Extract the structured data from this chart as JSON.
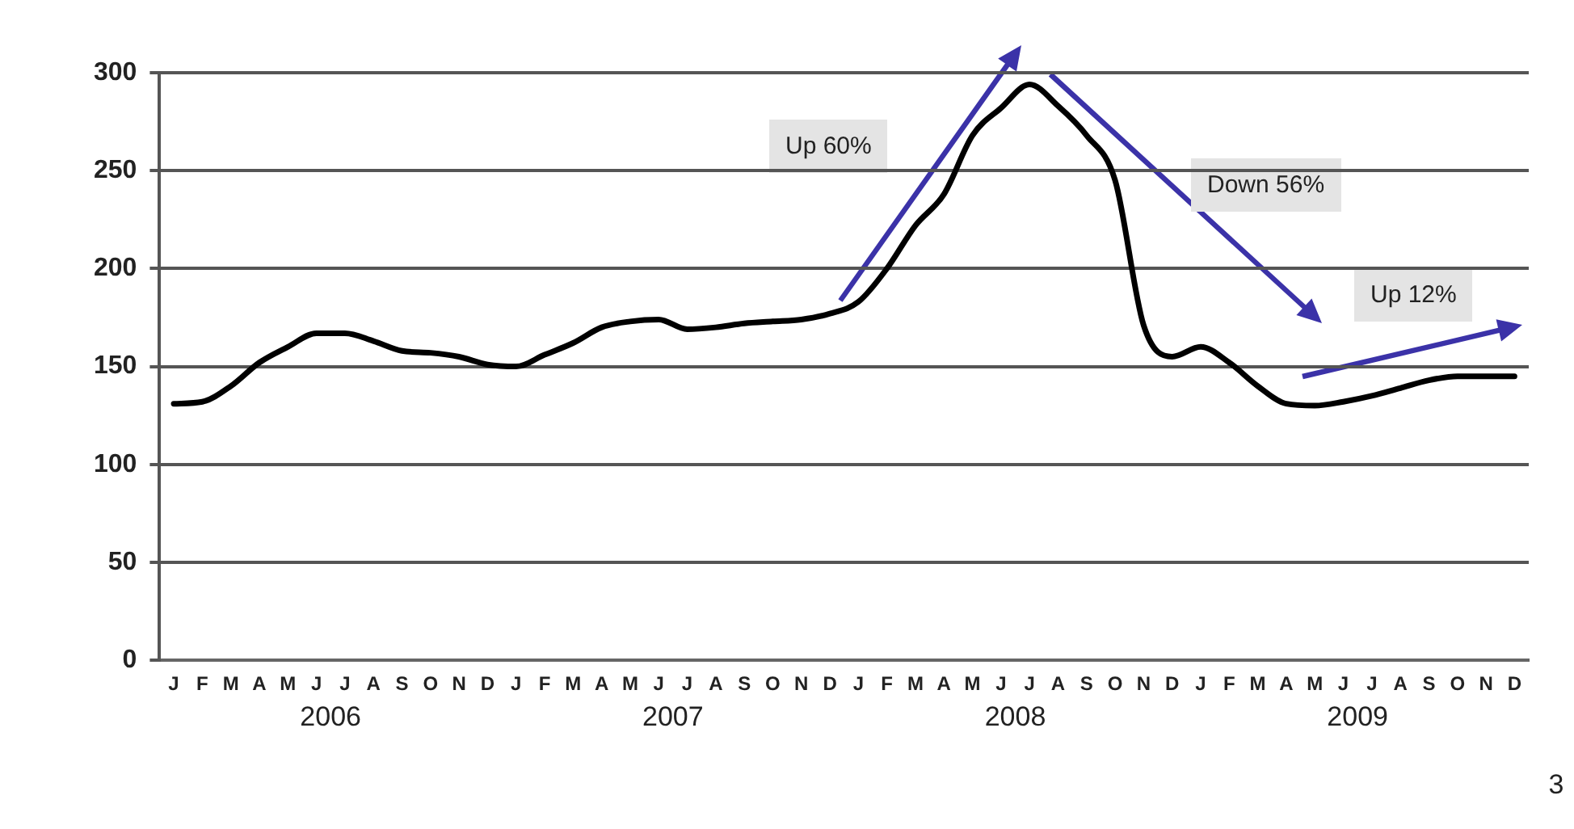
{
  "chart_data": {
    "type": "line",
    "categories": [
      "J",
      "F",
      "M",
      "A",
      "M",
      "J",
      "J",
      "A",
      "S",
      "O",
      "N",
      "D",
      "J",
      "F",
      "M",
      "A",
      "M",
      "J",
      "J",
      "A",
      "S",
      "O",
      "N",
      "D",
      "J",
      "F",
      "M",
      "A",
      "M",
      "J",
      "J",
      "A",
      "S",
      "O",
      "N",
      "D",
      "J",
      "F",
      "M",
      "A",
      "M",
      "J",
      "J",
      "A",
      "S",
      "O",
      "N",
      "D"
    ],
    "series": [
      {
        "color": "#000000",
        "values": [
          131,
          132,
          140,
          152,
          160,
          167,
          167,
          163,
          158,
          157,
          155,
          151,
          150,
          156,
          162,
          170,
          173,
          174,
          169,
          170,
          172,
          173,
          174,
          177,
          183,
          200,
          222,
          238,
          268,
          282,
          294,
          283,
          268,
          245,
          171,
          155,
          160,
          152,
          140,
          131,
          130,
          132,
          135,
          139,
          143,
          145,
          145,
          145
        ]
      }
    ],
    "ylim": [
      0,
      300
    ],
    "yticks": [
      0,
      50,
      100,
      150,
      200,
      250,
      300
    ],
    "grid": "y",
    "marker": "none",
    "line_style": "solid",
    "annotations": [
      "Up 60%",
      "Down 56%",
      "Up 12%",
      "2006",
      "2007",
      "2008",
      "2009",
      "3"
    ]
  }
}
